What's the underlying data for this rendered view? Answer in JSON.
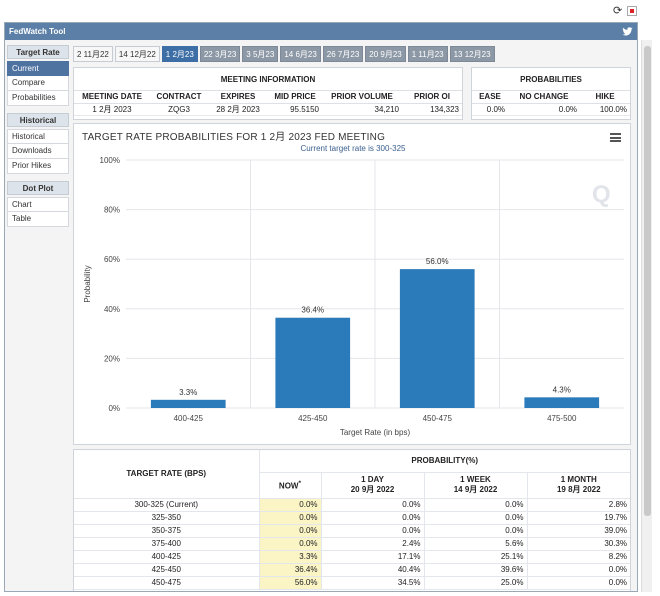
{
  "app": {
    "title": "FedWatch Tool"
  },
  "sidebar": {
    "sections": [
      {
        "title": "Target Rate",
        "items": [
          {
            "label": "Current",
            "active": true
          },
          {
            "label": "Compare"
          },
          {
            "label": "Probabilities"
          }
        ]
      },
      {
        "title": "Historical",
        "items": [
          {
            "label": "Historical"
          },
          {
            "label": "Downloads"
          },
          {
            "label": "Prior Hikes"
          }
        ]
      },
      {
        "title": "Dot Plot",
        "items": [
          {
            "label": "Chart"
          },
          {
            "label": "Table"
          }
        ]
      }
    ]
  },
  "tabs": [
    {
      "label": "2 11月22",
      "style": "light"
    },
    {
      "label": "14 12月22",
      "style": "light"
    },
    {
      "label": "1 2月23",
      "style": "active"
    },
    {
      "label": "22 3月23"
    },
    {
      "label": "3 5月23"
    },
    {
      "label": "14 6月23"
    },
    {
      "label": "26 7月23"
    },
    {
      "label": "20 9月23"
    },
    {
      "label": "1 11月23"
    },
    {
      "label": "13 12月23"
    }
  ],
  "meeting_info": {
    "title": "MEETING INFORMATION",
    "headers": [
      "MEETING DATE",
      "CONTRACT",
      "EXPIRES",
      "MID PRICE",
      "PRIOR VOLUME",
      "PRIOR OI"
    ],
    "values": [
      "1 2月 2023",
      "ZQG3",
      "28 2月 2023",
      "95.5150",
      "34,210",
      "134,323"
    ]
  },
  "probabilities": {
    "title": "PROBABILITIES",
    "headers": [
      "EASE",
      "NO CHANGE",
      "HIKE"
    ],
    "values": [
      "0.0%",
      "0.0%",
      "100.0%"
    ]
  },
  "chart_data": {
    "type": "bar",
    "title": "TARGET RATE PROBABILITIES FOR 1 2月 2023 FED MEETING",
    "subtitle": "Current target rate is 300-325",
    "categories": [
      "400-425",
      "425-450",
      "450-475",
      "475-500"
    ],
    "values": [
      3.3,
      36.4,
      56.0,
      4.3
    ],
    "data_labels": [
      "3.3%",
      "36.4%",
      "56.0%",
      "4.3%"
    ],
    "xlabel": "Target Rate (in bps)",
    "ylabel": "Probability",
    "ylim": [
      0,
      100
    ],
    "yticks": [
      "0%",
      "20%",
      "40%",
      "60%",
      "80%",
      "100%"
    ],
    "bar_color": "#2b7bba",
    "grid": true
  },
  "prob_table": {
    "header_left": "TARGET RATE (BPS)",
    "header_right": "PROBABILITY(%)",
    "cols": [
      {
        "l1": "NOW",
        "l2": "",
        "sup": "*"
      },
      {
        "l1": "1 DAY",
        "l2": "20 9月 2022"
      },
      {
        "l1": "1 WEEK",
        "l2": "14 9月 2022"
      },
      {
        "l1": "1 MONTH",
        "l2": "19 8月 2022"
      }
    ],
    "rows": [
      {
        "rate": "300-325 (Current)",
        "v": [
          "0.0%",
          "0.0%",
          "0.0%",
          "2.8%"
        ]
      },
      {
        "rate": "325-350",
        "v": [
          "0.0%",
          "0.0%",
          "0.0%",
          "19.7%"
        ]
      },
      {
        "rate": "350-375",
        "v": [
          "0.0%",
          "0.0%",
          "0.0%",
          "39.0%"
        ]
      },
      {
        "rate": "375-400",
        "v": [
          "0.0%",
          "2.4%",
          "5.6%",
          "30.3%"
        ]
      },
      {
        "rate": "400-425",
        "v": [
          "3.3%",
          "17.1%",
          "25.1%",
          "8.2%"
        ]
      },
      {
        "rate": "425-450",
        "v": [
          "36.4%",
          "40.4%",
          "39.6%",
          "0.0%"
        ]
      },
      {
        "rate": "450-475",
        "v": [
          "56.0%",
          "34.5%",
          "25.0%",
          "0.0%"
        ]
      }
    ]
  }
}
